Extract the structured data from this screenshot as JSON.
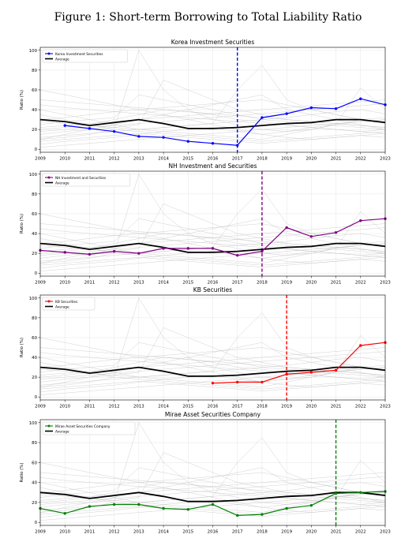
{
  "figure_title": "Figure 1: Short-term Borrowing to Total Liability Ratio",
  "chart_data": [
    {
      "type": "line",
      "title": "Korea Investment Securities",
      "ylabel": "Ratio (%)",
      "x": [
        2009,
        2010,
        2011,
        2012,
        2013,
        2014,
        2015,
        2016,
        2017,
        2018,
        2019,
        2020,
        2021,
        2022,
        2023
      ],
      "xlim": [
        2009,
        2023
      ],
      "ylim": [
        -3,
        103
      ],
      "yticks": [
        0,
        20,
        40,
        60,
        80,
        100
      ],
      "grid": true,
      "legend_position": "top-left",
      "series": [
        {
          "name": "Korea Investment Securities",
          "color": "#0000ff",
          "values": [
            null,
            24,
            21,
            18,
            13,
            12,
            8,
            6,
            4,
            32,
            36,
            42,
            41,
            51,
            45
          ]
        },
        {
          "name": "Average",
          "color": "#000000",
          "values": [
            30,
            28,
            24,
            27,
            30,
            26,
            21,
            21,
            22,
            24,
            26,
            27,
            30,
            30,
            27
          ]
        }
      ],
      "vline": {
        "x": 2017,
        "color": "#0000ff"
      }
    },
    {
      "type": "line",
      "title": "NH Investment and Securities",
      "ylabel": "Ratio (%)",
      "x": [
        2009,
        2010,
        2011,
        2012,
        2013,
        2014,
        2015,
        2016,
        2017,
        2018,
        2019,
        2020,
        2021,
        2022,
        2023
      ],
      "xlim": [
        2009,
        2023
      ],
      "ylim": [
        -3,
        103
      ],
      "yticks": [
        0,
        20,
        40,
        60,
        80,
        100
      ],
      "grid": true,
      "legend_position": "top-left",
      "series": [
        {
          "name": "NH Investment and Securities",
          "color": "#800080",
          "values": [
            23,
            21,
            19,
            22,
            20,
            25,
            25,
            25,
            18,
            22,
            46,
            37,
            41,
            53,
            55
          ]
        },
        {
          "name": "Average",
          "color": "#000000",
          "values": [
            30,
            28,
            24,
            27,
            30,
            26,
            21,
            21,
            22,
            24,
            26,
            27,
            30,
            30,
            27
          ]
        }
      ],
      "vline": {
        "x": 2018,
        "color": "#800080"
      }
    },
    {
      "type": "line",
      "title": "KB Securities",
      "ylabel": "Ratio (%)",
      "x": [
        2009,
        2010,
        2011,
        2012,
        2013,
        2014,
        2015,
        2016,
        2017,
        2018,
        2019,
        2020,
        2021,
        2022,
        2023
      ],
      "xlim": [
        2009,
        2023
      ],
      "ylim": [
        -3,
        103
      ],
      "yticks": [
        0,
        20,
        40,
        60,
        80,
        100
      ],
      "grid": true,
      "legend_position": "top-left",
      "series": [
        {
          "name": "KB Securities",
          "color": "#ff0000",
          "values": [
            null,
            null,
            null,
            null,
            null,
            null,
            null,
            14,
            15,
            15,
            23,
            25,
            27,
            52,
            55
          ]
        },
        {
          "name": "Average",
          "color": "#000000",
          "values": [
            30,
            28,
            24,
            27,
            30,
            26,
            21,
            21,
            22,
            24,
            26,
            27,
            30,
            30,
            27
          ]
        }
      ],
      "vline": {
        "x": 2019,
        "color": "#ff0000"
      }
    },
    {
      "type": "line",
      "title": "Mirae Asset Securities Company",
      "ylabel": "Ratio (%)",
      "x": [
        2009,
        2010,
        2011,
        2012,
        2013,
        2014,
        2015,
        2016,
        2017,
        2018,
        2019,
        2020,
        2021,
        2022,
        2023
      ],
      "xlim": [
        2009,
        2023
      ],
      "ylim": [
        -3,
        103
      ],
      "yticks": [
        0,
        20,
        40,
        60,
        80,
        100
      ],
      "grid": true,
      "legend_position": "top-left",
      "series": [
        {
          "name": "Mirae Asset Securities Company",
          "color": "#008000",
          "values": [
            14,
            9,
            16,
            18,
            18,
            14,
            13,
            18,
            7,
            8,
            14,
            17,
            29,
            30,
            31
          ]
        },
        {
          "name": "Average",
          "color": "#000000",
          "values": [
            30,
            28,
            24,
            27,
            30,
            26,
            21,
            21,
            22,
            24,
            26,
            27,
            30,
            30,
            27
          ]
        }
      ],
      "vline": {
        "x": 2021,
        "color": "#008000"
      }
    }
  ],
  "background_series": {
    "color": "#bdbdbd",
    "values": [
      [
        10,
        12,
        15,
        20,
        100,
        60,
        40,
        30,
        25,
        20,
        18,
        22,
        25,
        28,
        30
      ],
      [
        40,
        35,
        30,
        25,
        20,
        22,
        24,
        26,
        28,
        30,
        32,
        35,
        38,
        40,
        36
      ],
      [
        5,
        8,
        10,
        12,
        15,
        18,
        20,
        22,
        18,
        15,
        12,
        10,
        12,
        14,
        16
      ],
      [
        20,
        22,
        25,
        30,
        35,
        40,
        38,
        35,
        30,
        28,
        25,
        22,
        20,
        18,
        20
      ],
      [
        60,
        55,
        50,
        45,
        40,
        35,
        30,
        25,
        20,
        15,
        18,
        20,
        25,
        30,
        32
      ],
      [
        15,
        18,
        20,
        22,
        25,
        70,
        60,
        50,
        40,
        35,
        30,
        28,
        26,
        24,
        22
      ],
      [
        30,
        32,
        35,
        38,
        40,
        42,
        44,
        46,
        48,
        50,
        45,
        40,
        35,
        30,
        28
      ],
      [
        8,
        10,
        12,
        14,
        16,
        14,
        12,
        10,
        8,
        6,
        8,
        10,
        12,
        14,
        12
      ],
      [
        25,
        28,
        30,
        32,
        55,
        50,
        45,
        40,
        35,
        30,
        28,
        26,
        24,
        22,
        20
      ],
      [
        12,
        14,
        16,
        18,
        20,
        22,
        24,
        26,
        60,
        85,
        50,
        40,
        35,
        30,
        28
      ],
      [
        35,
        30,
        25,
        20,
        18,
        16,
        14,
        12,
        10,
        8,
        10,
        12,
        14,
        16,
        18
      ],
      [
        45,
        42,
        40,
        38,
        36,
        34,
        32,
        30,
        28,
        26,
        24,
        22,
        20,
        18,
        16
      ],
      [
        18,
        20,
        22,
        24,
        26,
        28,
        30,
        32,
        34,
        36,
        38,
        40,
        42,
        44,
        46
      ],
      [
        2,
        4,
        6,
        8,
        10,
        12,
        14,
        16,
        18,
        20,
        22,
        24,
        26,
        28,
        30
      ],
      [
        28,
        26,
        24,
        22,
        20,
        18,
        16,
        14,
        12,
        10,
        15,
        20,
        25,
        62,
        40
      ],
      [
        50,
        48,
        46,
        44,
        42,
        40,
        38,
        36,
        34,
        32,
        30,
        28,
        26,
        24,
        22
      ],
      [
        10,
        15,
        20,
        25,
        30,
        35,
        40,
        45,
        50,
        55,
        40,
        35,
        30,
        25,
        20
      ],
      [
        22,
        24,
        26,
        28,
        30,
        32,
        34,
        36,
        38,
        40,
        42,
        44,
        46,
        48,
        50
      ]
    ]
  }
}
